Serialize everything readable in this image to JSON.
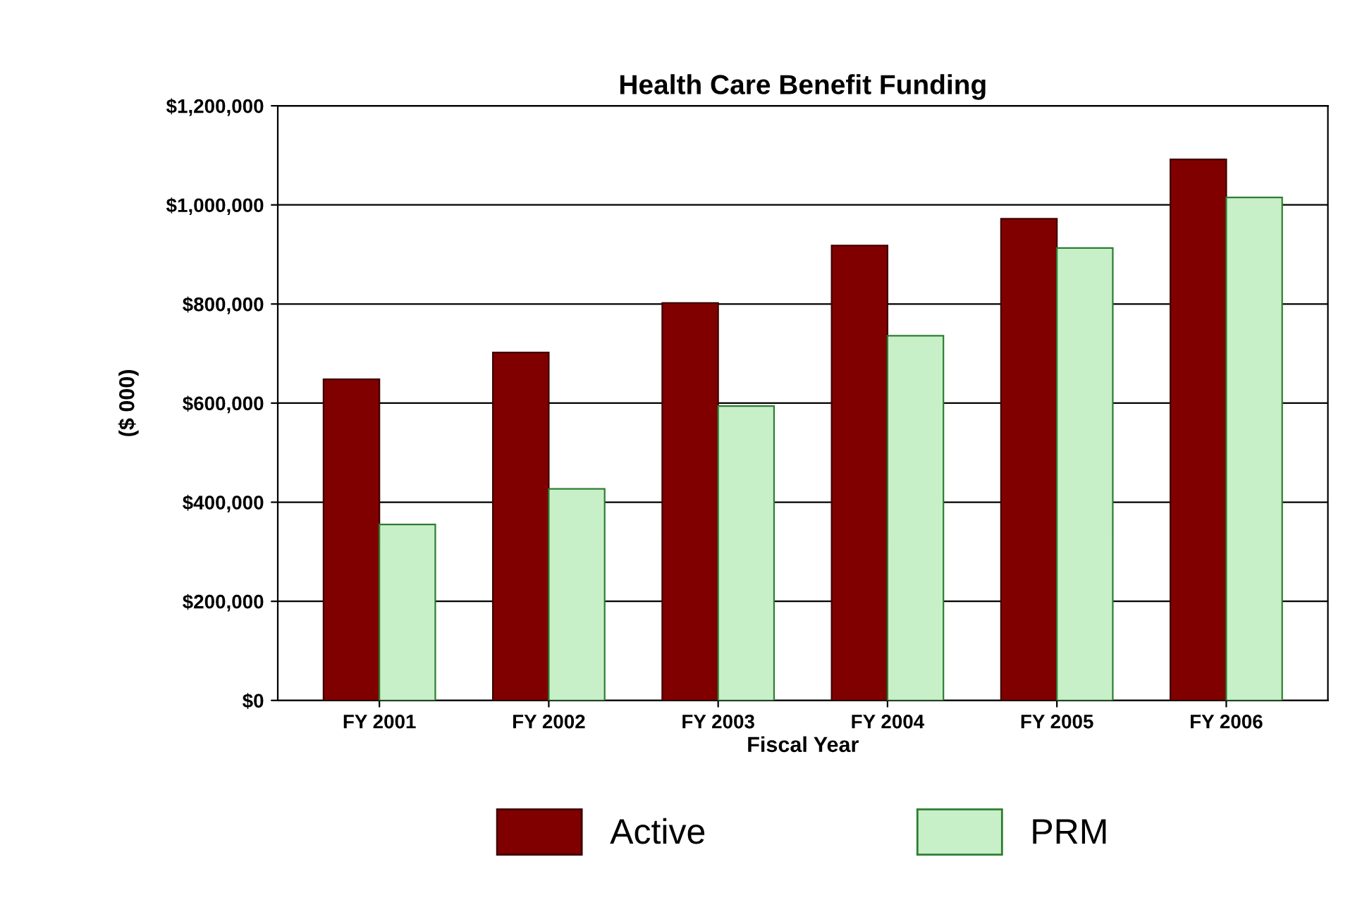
{
  "chart_data": {
    "type": "bar",
    "title": "Health Care Benefit Funding",
    "xlabel": "Fiscal Year",
    "ylabel": "($ 000)",
    "categories": [
      "FY 2001",
      "FY 2002",
      "FY 2003",
      "FY 2004",
      "FY 2005",
      "FY 2006"
    ],
    "series": [
      {
        "name": "Active",
        "color": "#800000",
        "values": [
          648000,
          702000,
          802000,
          918000,
          972000,
          1092000
        ]
      },
      {
        "name": "PRM",
        "color": "#c8f0c8",
        "values": [
          355000,
          427000,
          594000,
          736000,
          913000,
          1015000
        ]
      }
    ],
    "ylim": [
      0,
      1200000
    ],
    "yticks": [
      {
        "value": 0,
        "label": "$0"
      },
      {
        "value": 200000,
        "label": "$200,000"
      },
      {
        "value": 400000,
        "label": "$400,000"
      },
      {
        "value": 600000,
        "label": "$600,000"
      },
      {
        "value": 800000,
        "label": "$800,000"
      },
      {
        "value": 1000000,
        "label": "$1,000,000"
      },
      {
        "value": 1200000,
        "label": "$1,200,000"
      }
    ],
    "grid": "y",
    "legend": "bottom"
  }
}
